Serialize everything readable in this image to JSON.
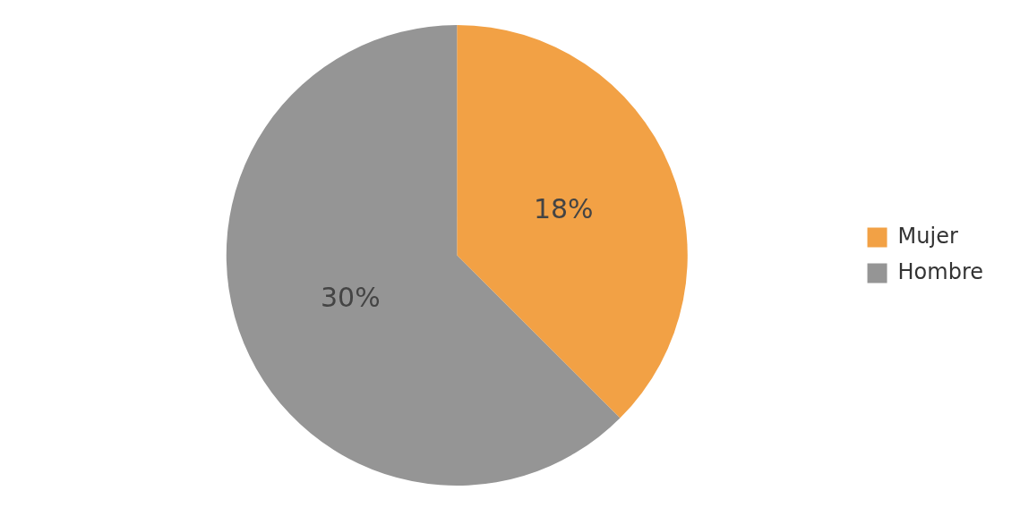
{
  "chart_data": {
    "type": "pie",
    "categories": [
      "Mujer",
      "Hombre"
    ],
    "values": [
      18,
      30
    ],
    "colors": [
      "#f2a145",
      "#959595"
    ],
    "value_labels": [
      "18%",
      "30%"
    ],
    "legend": "right"
  }
}
